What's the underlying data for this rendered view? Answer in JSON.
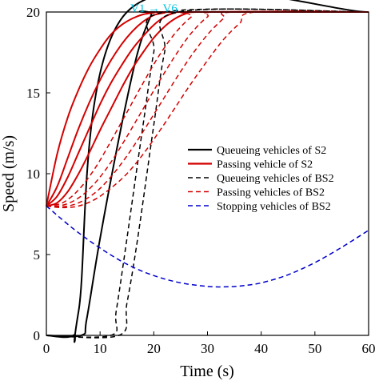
{
  "chart_data": {
    "type": "line",
    "xlabel": "Time (s)",
    "ylabel": "Speed (m/s)",
    "xlim": [
      0,
      60
    ],
    "ylim": [
      0,
      20
    ],
    "xticks": [
      0,
      10,
      20,
      30,
      40,
      50,
      60
    ],
    "yticks": [
      0,
      5,
      10,
      15,
      20
    ],
    "grid": false,
    "legend_position": "center-right",
    "annotation": {
      "text": "V1 → V6",
      "color": "#00c0e0"
    },
    "legend": [
      {
        "label": "Queueing vehicles of S2",
        "color": "#000000",
        "dash": "solid"
      },
      {
        "label": "Passing vehicle of S2",
        "color": "#d40000",
        "dash": "solid"
      },
      {
        "label": "Queueing vehicles of BS2",
        "color": "#000000",
        "dash": "dashed"
      },
      {
        "label": "Passing vehicles of BS2",
        "color": "#d40000",
        "dash": "dashed"
      },
      {
        "label": "Stopping vehicles of BS2",
        "color": "#0000cc",
        "dash": "dashed"
      }
    ],
    "series": [
      {
        "group": "Queueing vehicles of S2",
        "color": "#000000",
        "dash": "solid",
        "x": [
          0,
          5,
          6,
          15,
          60
        ],
        "y": [
          0,
          0,
          1.5,
          20,
          20
        ]
      },
      {
        "group": "Queueing vehicles of S2",
        "color": "#000000",
        "dash": "solid",
        "x": [
          0,
          6.5,
          7.5,
          10,
          14,
          17,
          19.5,
          20.5,
          60
        ],
        "y": [
          0,
          0,
          1,
          6,
          13,
          17.5,
          19.8,
          20,
          20
        ]
      },
      {
        "group": "Passing vehicle of S2",
        "color": "#d40000",
        "dash": "solid",
        "x": [
          0,
          2,
          4,
          6,
          8,
          10,
          12,
          14,
          16,
          18,
          20,
          22,
          60
        ],
        "y": [
          8,
          11.2,
          13.5,
          15.2,
          16.6,
          17.7,
          18.6,
          19.2,
          19.6,
          19.85,
          19.95,
          20,
          20
        ]
      },
      {
        "group": "Passing vehicle of S2",
        "color": "#d40000",
        "dash": "solid",
        "x": [
          0,
          2,
          4,
          6,
          8,
          10,
          12,
          14,
          16,
          18,
          20,
          22,
          24,
          60
        ],
        "y": [
          8,
          9.2,
          11,
          12.8,
          14.4,
          15.8,
          17,
          18,
          18.8,
          19.4,
          19.8,
          19.95,
          20,
          20
        ]
      },
      {
        "group": "Passing vehicle of S2",
        "color": "#d40000",
        "dash": "solid",
        "x": [
          0,
          2,
          4,
          6,
          8,
          10,
          12,
          14,
          16,
          18,
          20,
          22,
          24,
          26,
          60
        ],
        "y": [
          8,
          8.6,
          9.8,
          11.3,
          12.8,
          14.3,
          15.6,
          16.7,
          17.7,
          18.5,
          19.2,
          19.7,
          19.95,
          20,
          20
        ]
      },
      {
        "group": "Passing vehicle of S2",
        "color": "#d40000",
        "dash": "solid",
        "x": [
          0,
          2,
          4,
          6,
          8,
          10,
          12,
          14,
          16,
          18,
          20,
          22,
          24,
          26,
          28,
          60
        ],
        "y": [
          8,
          8.2,
          8.9,
          10,
          11.3,
          12.7,
          14,
          15.3,
          16.5,
          17.5,
          18.4,
          19.1,
          19.6,
          19.9,
          20,
          20
        ]
      },
      {
        "group": "Queueing vehicles of BS2",
        "color": "#000000",
        "dash": "dashed",
        "x": [
          0,
          12,
          13,
          15,
          18,
          20,
          22,
          60
        ],
        "y": [
          0,
          0,
          1.5,
          6,
          13,
          17.5,
          20,
          20
        ]
      },
      {
        "group": "Queueing vehicles of BS2",
        "color": "#000000",
        "dash": "dashed",
        "x": [
          0,
          13.5,
          15,
          17,
          20,
          22,
          24.5,
          60
        ],
        "y": [
          0,
          0,
          2,
          6,
          13,
          17.5,
          20,
          20
        ]
      },
      {
        "group": "Passing vehicles of BS2",
        "color": "#d40000",
        "dash": "dashed",
        "x": [
          0,
          3,
          6,
          9,
          12,
          15,
          18,
          21,
          24,
          27,
          29,
          60
        ],
        "y": [
          8,
          8.2,
          9,
          10.3,
          12,
          13.8,
          15.6,
          17.3,
          18.7,
          19.7,
          20,
          20
        ]
      },
      {
        "group": "Passing vehicles of BS2",
        "color": "#d40000",
        "dash": "dashed",
        "x": [
          0,
          3,
          6,
          9,
          12,
          15,
          18,
          21,
          24,
          27,
          30,
          32,
          60
        ],
        "y": [
          8,
          8.05,
          8.5,
          9.4,
          10.7,
          12.3,
          14,
          15.7,
          17.3,
          18.7,
          19.7,
          20,
          20
        ]
      },
      {
        "group": "Passing vehicles of BS2",
        "color": "#d40000",
        "dash": "dashed",
        "x": [
          0,
          3,
          6,
          9,
          12,
          15,
          18,
          21,
          24,
          27,
          30,
          33,
          35,
          60
        ],
        "y": [
          8,
          7.95,
          8.2,
          8.8,
          9.8,
          11.1,
          12.6,
          14.2,
          15.8,
          17.3,
          18.6,
          19.6,
          20,
          20
        ]
      },
      {
        "group": "Passing vehicles of BS2",
        "color": "#d40000",
        "dash": "dashed",
        "x": [
          0,
          3,
          6,
          9,
          12,
          15,
          18,
          21,
          24,
          27,
          30,
          33,
          36,
          39,
          60
        ],
        "y": [
          8,
          7.9,
          8,
          8.4,
          9.1,
          10,
          11.2,
          12.6,
          14.1,
          15.6,
          17,
          18.3,
          19.3,
          20,
          20
        ]
      },
      {
        "group": "Stopping vehicles of BS2",
        "color": "#0000cc",
        "dash": "dashed",
        "x": [
          0,
          5,
          10,
          15,
          20,
          25,
          30,
          33,
          36,
          40,
          45,
          50,
          55,
          60
        ],
        "y": [
          8,
          6.6,
          5.4,
          4.4,
          3.7,
          3.25,
          3.03,
          3,
          3.05,
          3.25,
          3.75,
          4.5,
          5.45,
          6.5
        ]
      }
    ]
  }
}
